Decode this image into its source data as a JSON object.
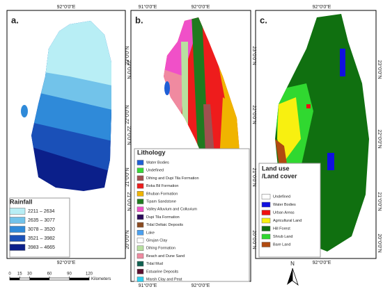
{
  "panels": [
    {
      "label": "a.",
      "top": [
        "92°0'0\"E"
      ],
      "bottom": [
        "92°0'0\"E"
      ],
      "right": [
        "23°0'0\"N",
        "22°0'0\"N",
        "21°0'0\"N"
      ],
      "left": [],
      "legend": {
        "title": "Rainfall",
        "items": [
          {
            "name": "2211 – 2634",
            "color": "#b8eef5"
          },
          {
            "name": "2635 – 3077",
            "color": "#72c3ea"
          },
          {
            "name": "3078 – 3520",
            "color": "#2f8ad9"
          },
          {
            "name": "3521 – 3982",
            "color": "#1a50b8"
          },
          {
            "name": "3983 – 4665",
            "color": "#0b1f8a"
          }
        ]
      }
    },
    {
      "label": "b.",
      "top": [
        "91°0'0\"E",
        "92°0'0\"E"
      ],
      "bottom": [
        "91°0'0\"E",
        "92°0'0\"E"
      ],
      "right": [
        "23°0'0\"N",
        "22°0'0\"N",
        "21°0'0\"N",
        "20°0'0\"N"
      ],
      "left": [
        "23°0'0\"N",
        "22°0'0\"N",
        "21°0'0\"N",
        "20°0'0\"N"
      ],
      "legend": {
        "title": "Lithology",
        "items": [
          {
            "name": "Water Bodies",
            "color": "#1f5fd6"
          },
          {
            "name": "Undefined",
            "color": "#38d838"
          },
          {
            "name": "Dihing and Dupi Tila Formation",
            "color": "#a05050"
          },
          {
            "name": "Boka Bil Formation",
            "color": "#ee1c1c"
          },
          {
            "name": "Bhuban Formation",
            "color": "#f0b400"
          },
          {
            "name": "Tipam Sandstone",
            "color": "#1f7a1f"
          },
          {
            "name": "Valley Alluvium and Colluvium",
            "color": "#f050c8"
          },
          {
            "name": "Dupi Tila Formation",
            "color": "#2a0a5a"
          },
          {
            "name": "Tidal Deltaic Deposits",
            "color": "#8a4a20"
          },
          {
            "name": "Lake",
            "color": "#4aa0f0"
          },
          {
            "name": "Girujan Clay",
            "color": "#ffffff"
          },
          {
            "name": "Dihing Formation",
            "color": "#b8e0a0"
          },
          {
            "name": "Beach and Dune Sand",
            "color": "#f08aa0"
          },
          {
            "name": "Tidal Mud",
            "color": "#106050"
          },
          {
            "name": "Estuarine Deposits",
            "color": "#5a1030"
          },
          {
            "name": "Marsh Clay and Peat",
            "color": "#30d0f0"
          }
        ]
      }
    },
    {
      "label": "c.",
      "top": [
        "92°0'0\"E"
      ],
      "bottom": [
        "92°0'0\"E"
      ],
      "right": [
        "23°0'0\"N",
        "22°0'0\"N",
        "21°0'0\"N",
        "20°0'0\"N"
      ],
      "left": [],
      "legend": {
        "title_lines": [
          "Land use",
          "/Land cover"
        ],
        "items": [
          {
            "name": "Undefined",
            "color": "#ffffff"
          },
          {
            "name": "Water Bodies",
            "color": "#1010e0"
          },
          {
            "name": "Urban Areas",
            "color": "#f01010"
          },
          {
            "name": "Agricultural Land",
            "color": "#f8f010"
          },
          {
            "name": "Hill Forest",
            "color": "#107010"
          },
          {
            "name": "Shrub Land",
            "color": "#30d830"
          },
          {
            "name": "Bare Land",
            "color": "#b04a10"
          }
        ]
      }
    }
  ],
  "scale_bar": {
    "ticks": [
      0,
      15,
      30,
      60,
      90,
      120
    ],
    "unit": "Kilometers"
  },
  "north": "N"
}
